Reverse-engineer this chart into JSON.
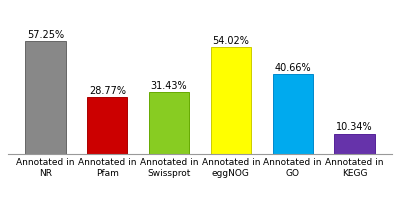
{
  "categories": [
    "Annotated in\nNR",
    "Annotated in\nPfam",
    "Annotated in\nSwissprot",
    "Annotated in\neggNOG",
    "Annotated in\nGO",
    "Annotated in\nKEGG"
  ],
  "values": [
    57.25,
    28.77,
    31.43,
    54.02,
    40.66,
    10.34
  ],
  "bar_colors": [
    "#888888",
    "#cc0000",
    "#88cc22",
    "#ffff00",
    "#00aaee",
    "#6633aa"
  ],
  "bar_edge_colors": [
    "#666666",
    "#aa0000",
    "#66aa00",
    "#cccc00",
    "#0088cc",
    "#552299"
  ],
  "labels": [
    "57.25%",
    "28.77%",
    "31.43%",
    "54.02%",
    "40.66%",
    "10.34%"
  ],
  "ylim": [
    0,
    65
  ],
  "background_color": "#ffffff",
  "label_fontsize": 7,
  "tick_fontsize": 6.5
}
